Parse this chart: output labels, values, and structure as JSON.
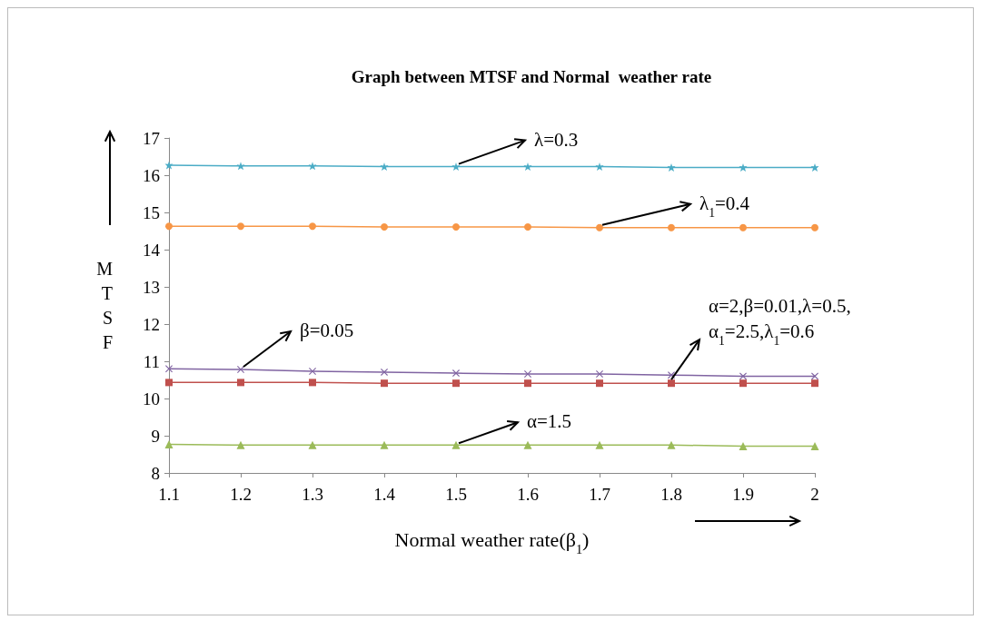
{
  "chart_data": {
    "type": "line",
    "title": "Graph between MTSF and Normal  weather rate",
    "xlabel": "Normal weather rate(β$_{1}$)",
    "ylabel": "MTSF",
    "x": [
      1.1,
      1.2,
      1.3,
      1.4,
      1.5,
      1.6,
      1.7,
      1.8,
      1.9,
      2
    ],
    "xlim": [
      1.1,
      2
    ],
    "xticks": [
      1.1,
      1.2,
      1.3,
      1.4,
      1.5,
      1.6,
      1.7,
      1.8,
      1.9,
      2
    ],
    "ylim": [
      8,
      17
    ],
    "yticks": [
      8,
      9,
      10,
      11,
      12,
      13,
      14,
      15,
      16,
      17
    ],
    "grid": false,
    "line_style": "solid",
    "series": [
      {
        "color": "#4bacc6",
        "marker": "star",
        "values": [
          16.27,
          16.25,
          16.25,
          16.23,
          16.23,
          16.23,
          16.23,
          16.21,
          16.21,
          16.21
        ]
      },
      {
        "color": "#f79646",
        "marker": "circle",
        "values": [
          14.63,
          14.63,
          14.63,
          14.61,
          14.61,
          14.61,
          14.59,
          14.59,
          14.59,
          14.59
        ]
      },
      {
        "color": "#8064a2",
        "marker": "cross",
        "values": [
          10.8,
          10.78,
          10.73,
          10.71,
          10.68,
          10.66,
          10.66,
          10.63,
          10.6,
          10.6
        ]
      },
      {
        "color": "#c0504d",
        "marker": "square",
        "values": [
          10.43,
          10.43,
          10.43,
          10.41,
          10.41,
          10.41,
          10.41,
          10.41,
          10.41,
          10.41
        ]
      },
      {
        "color": "#9bbb59",
        "marker": "triangle",
        "values": [
          8.77,
          8.75,
          8.75,
          8.75,
          8.75,
          8.75,
          8.75,
          8.75,
          8.72,
          8.72
        ]
      }
    ],
    "annotations": [
      {
        "text": "λ=0.3",
        "x": 1.5,
        "y": 16.23
      },
      {
        "text": "λ$_{1}$=0.4",
        "x": 1.7,
        "y": 14.59
      },
      {
        "text": "β=0.05",
        "x": 1.2,
        "y": 10.78
      },
      {
        "text": "α=2,β=0.01,λ=0.5,\nα$_{1}$=2.5,λ$_{1}$=0.6",
        "x": 1.8,
        "y": 10.41
      },
      {
        "text": "α=1.5",
        "x": 1.5,
        "y": 8.75
      }
    ]
  }
}
